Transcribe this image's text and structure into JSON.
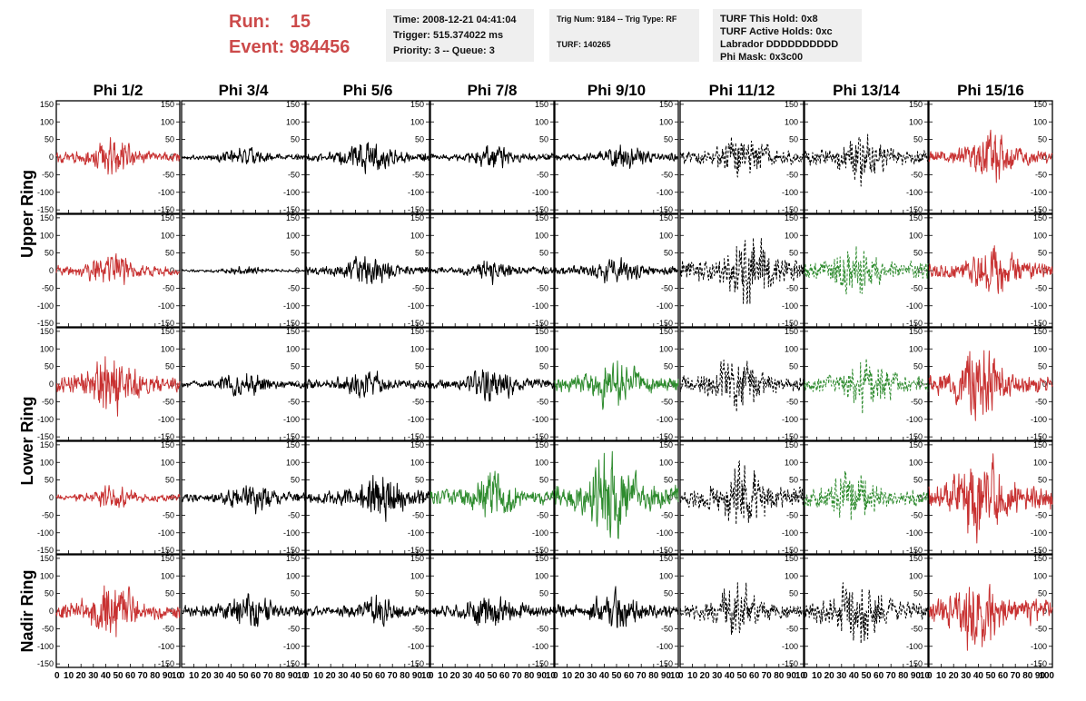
{
  "header": {
    "run_label": "Run:",
    "run_value": "15",
    "event_label": "Event:",
    "event_value": "984456",
    "box1": [
      "Time: 2008-12-21 04:41:04",
      "Trigger: 515.374022 ms",
      "Priority: 3 -- Queue: 3"
    ],
    "box2": [
      "Trig Num: 9184 -- Trig Type: RF",
      "TURF: 140265"
    ],
    "box3": [
      "TURF This Hold: 0x8",
      "TURF Active Holds: 0xc",
      "Labrador DDDDDDDDDD",
      "Phi Mask: 0x3c00"
    ]
  },
  "colors": {
    "red": "#c83232",
    "black": "#000000",
    "green": "#2e8b2e",
    "header_text": "#cc4a4a",
    "box_bg": "#efefef"
  },
  "chart_data": {
    "type": "line",
    "title": "",
    "columns": [
      "Phi 1/2",
      "Phi 3/4",
      "Phi 5/6",
      "Phi 7/8",
      "Phi 9/10",
      "Phi 11/12",
      "Phi 13/14",
      "Phi 15/16"
    ],
    "ring_labels": [
      {
        "label": "Upper Ring",
        "rows": [
          0,
          1
        ]
      },
      {
        "label": "Lower Ring",
        "rows": [
          2,
          3
        ]
      },
      {
        "label": "Nadir Ring",
        "rows": [
          4
        ]
      }
    ],
    "xlim": [
      0,
      100
    ],
    "ylim": [
      -160,
      160
    ],
    "x_ticks": [
      0,
      10,
      20,
      30,
      40,
      50,
      60,
      70,
      80,
      90,
      100
    ],
    "y_ticks": [
      150,
      100,
      50,
      0,
      -50,
      -100,
      -150
    ],
    "x_tick_labels_per_panel": [
      "0",
      "10",
      "20",
      "30",
      "40",
      "50",
      "60",
      "70",
      "80",
      "90",
      "10"
    ],
    "x_tick_labels_last_panel": [
      "0",
      "10",
      "20",
      "30",
      "40",
      "50",
      "60",
      "70",
      "80",
      "90",
      "100"
    ],
    "panels": [
      [
        {
          "color": "red",
          "style": "solid",
          "amp": 60,
          "peak": 45
        },
        {
          "color": "black",
          "style": "solid",
          "amp": 30,
          "peak": 50
        },
        {
          "color": "black",
          "style": "solid",
          "amp": 55,
          "peak": 50
        },
        {
          "color": "black",
          "style": "solid",
          "amp": 40,
          "peak": 50
        },
        {
          "color": "black",
          "style": "solid",
          "amp": 40,
          "peak": 55
        },
        {
          "color": "black",
          "style": "dashed",
          "amp": 75,
          "peak": 50
        },
        {
          "color": "black",
          "style": "dashed",
          "amp": 85,
          "peak": 45
        },
        {
          "color": "red",
          "style": "solid",
          "amp": 80,
          "peak": 50
        }
      ],
      [
        {
          "color": "red",
          "style": "solid",
          "amp": 55,
          "peak": 45
        },
        {
          "color": "black",
          "style": "solid",
          "amp": 15,
          "peak": 50
        },
        {
          "color": "black",
          "style": "solid",
          "amp": 50,
          "peak": 50
        },
        {
          "color": "black",
          "style": "solid",
          "amp": 40,
          "peak": 50
        },
        {
          "color": "black",
          "style": "solid",
          "amp": 45,
          "peak": 50
        },
        {
          "color": "black",
          "style": "dashed",
          "amp": 130,
          "peak": 55
        },
        {
          "color": "green",
          "style": "dashed",
          "amp": 90,
          "peak": 40
        },
        {
          "color": "red",
          "style": "solid",
          "amp": 85,
          "peak": 50
        }
      ],
      [
        {
          "color": "red",
          "style": "solid",
          "amp": 95,
          "peak": 45
        },
        {
          "color": "black",
          "style": "solid",
          "amp": 40,
          "peak": 50
        },
        {
          "color": "black",
          "style": "solid",
          "amp": 50,
          "peak": 50
        },
        {
          "color": "black",
          "style": "solid",
          "amp": 55,
          "peak": 50
        },
        {
          "color": "green",
          "style": "solid",
          "amp": 85,
          "peak": 48
        },
        {
          "color": "black",
          "style": "dashed",
          "amp": 90,
          "peak": 45
        },
        {
          "color": "green",
          "style": "dashed",
          "amp": 90,
          "peak": 50
        },
        {
          "color": "red",
          "style": "solid",
          "amp": 110,
          "peak": 42
        }
      ],
      [
        {
          "color": "red",
          "style": "solid",
          "amp": 40,
          "peak": 45
        },
        {
          "color": "black",
          "style": "solid",
          "amp": 50,
          "peak": 55
        },
        {
          "color": "black",
          "style": "solid",
          "amp": 80,
          "peak": 60
        },
        {
          "color": "green",
          "style": "solid",
          "amp": 80,
          "peak": 50
        },
        {
          "color": "green",
          "style": "solid",
          "amp": 140,
          "peak": 45
        },
        {
          "color": "black",
          "style": "dashed",
          "amp": 120,
          "peak": 50
        },
        {
          "color": "green",
          "style": "dashed",
          "amp": 100,
          "peak": 40
        },
        {
          "color": "red",
          "style": "solid",
          "amp": 145,
          "peak": 42
        }
      ],
      [
        {
          "color": "red",
          "style": "solid",
          "amp": 100,
          "peak": 45
        },
        {
          "color": "black",
          "style": "solid",
          "amp": 60,
          "peak": 55
        },
        {
          "color": "black",
          "style": "solid",
          "amp": 50,
          "peak": 60
        },
        {
          "color": "black",
          "style": "solid",
          "amp": 65,
          "peak": 50
        },
        {
          "color": "black",
          "style": "solid",
          "amp": 70,
          "peak": 50
        },
        {
          "color": "black",
          "style": "dashed",
          "amp": 90,
          "peak": 45
        },
        {
          "color": "black",
          "style": "dashed",
          "amp": 110,
          "peak": 45
        },
        {
          "color": "red",
          "style": "solid",
          "amp": 140,
          "peak": 38
        }
      ]
    ]
  }
}
